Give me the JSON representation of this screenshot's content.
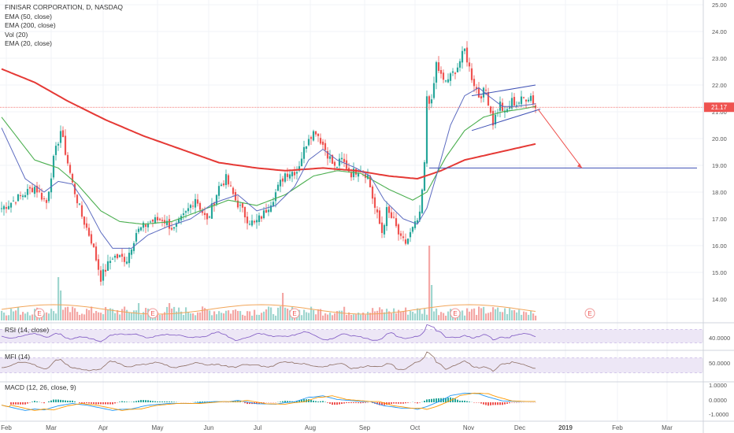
{
  "legend": {
    "title": "FINISAR CORPORATION, D, NASDAQ",
    "ema50": "EMA (50, close)",
    "ema200": "EMA (200, close)",
    "vol": "Vol (20)",
    "ema20": "EMA (20, close)"
  },
  "indicators": {
    "rsi": "RSI (14, close)",
    "mfi": "MFI (14)",
    "macd": "MACD (12, 26, close, 9)"
  },
  "colors": {
    "up": "#26a69a",
    "down": "#ef5350",
    "ema20": "#5c6bc0",
    "ema50": "#4caf50",
    "ema200": "#e53935",
    "osc": "#7e57c2",
    "band": "#ede7f6",
    "price_line": "#ef5350",
    "trend": "#3f51b5"
  },
  "chart_data": {
    "type": "candlestick",
    "ylim": [
      13,
      25
    ],
    "price_ticks": [
      "25.00",
      "24.00",
      "23.00",
      "22.00",
      "21.00",
      "20.00",
      "19.00",
      "18.00",
      "17.00",
      "16.00",
      "15.00",
      "14.00"
    ],
    "last_price": "21.17",
    "x_labels": [
      "Feb",
      "Mar",
      "Apr",
      "May",
      "Jun",
      "Jul",
      "Aug",
      "Sep",
      "Oct",
      "Nov",
      "Dec",
      "2019",
      "Feb",
      "Mar"
    ],
    "earnings_marker": "E",
    "earnings_count": 5,
    "close_anchors": [
      [
        0,
        17.4
      ],
      [
        9,
        17.9
      ],
      [
        14,
        18.2
      ],
      [
        19,
        17.6
      ],
      [
        22,
        19.2
      ],
      [
        25,
        20.3
      ],
      [
        30,
        18.3
      ],
      [
        34,
        17.1
      ],
      [
        38,
        16.2
      ],
      [
        42,
        14.8
      ],
      [
        47,
        15.6
      ],
      [
        53,
        15.5
      ],
      [
        57,
        16.5
      ],
      [
        63,
        16.9
      ],
      [
        68,
        17.0
      ],
      [
        73,
        16.6
      ],
      [
        78,
        17.2
      ],
      [
        82,
        17.8
      ],
      [
        87,
        16.9
      ],
      [
        92,
        18.2
      ],
      [
        95,
        18.5
      ],
      [
        99,
        17.7
      ],
      [
        104,
        17.0
      ],
      [
        107,
        16.8
      ],
      [
        111,
        17.2
      ],
      [
        115,
        17.8
      ],
      [
        120,
        18.7
      ],
      [
        125,
        18.8
      ],
      [
        130,
        20.1
      ],
      [
        133,
        20.3
      ],
      [
        137,
        19.6
      ],
      [
        141,
        18.9
      ],
      [
        144,
        19.2
      ],
      [
        148,
        18.7
      ],
      [
        152,
        18.9
      ],
      [
        155,
        18.6
      ],
      [
        158,
        17.4
      ],
      [
        161,
        16.5
      ],
      [
        163,
        17.3
      ],
      [
        166,
        16.9
      ],
      [
        169,
        16.2
      ],
      [
        171,
        16.1
      ],
      [
        174,
        16.6
      ],
      [
        177,
        17.1
      ],
      [
        179,
        19.0
      ],
      [
        180,
        21.6
      ],
      [
        182,
        21.3
      ],
      [
        184,
        22.8
      ],
      [
        187,
        22.1
      ],
      [
        190,
        22.3
      ],
      [
        193,
        22.7
      ],
      [
        196,
        23.3
      ],
      [
        199,
        22.3
      ],
      [
        202,
        21.6
      ],
      [
        205,
        21.8
      ],
      [
        208,
        20.6
      ],
      [
        211,
        21.3
      ],
      [
        213,
        20.9
      ],
      [
        216,
        21.4
      ],
      [
        218,
        21.3
      ],
      [
        221,
        21.5
      ],
      [
        224,
        21.6
      ],
      [
        226,
        21.17
      ]
    ],
    "ema20": [
      [
        0,
        20.4
      ],
      [
        10,
        18.5
      ],
      [
        18,
        18.0
      ],
      [
        24,
        18.4
      ],
      [
        30,
        18.3
      ],
      [
        36,
        17.5
      ],
      [
        42,
        16.5
      ],
      [
        47,
        15.9
      ],
      [
        55,
        15.9
      ],
      [
        62,
        16.4
      ],
      [
        70,
        16.7
      ],
      [
        80,
        17.0
      ],
      [
        90,
        17.6
      ],
      [
        100,
        17.9
      ],
      [
        108,
        17.3
      ],
      [
        116,
        17.5
      ],
      [
        124,
        18.2
      ],
      [
        130,
        19.2
      ],
      [
        136,
        19.6
      ],
      [
        142,
        19.2
      ],
      [
        150,
        18.9
      ],
      [
        156,
        18.6
      ],
      [
        162,
        17.7
      ],
      [
        170,
        17.0
      ],
      [
        176,
        16.8
      ],
      [
        180,
        17.4
      ],
      [
        184,
        18.6
      ],
      [
        190,
        20.5
      ],
      [
        196,
        21.6
      ],
      [
        202,
        21.9
      ],
      [
        206,
        21.6
      ],
      [
        212,
        21.2
      ],
      [
        218,
        21.2
      ],
      [
        226,
        21.3
      ]
    ],
    "ema50": [
      [
        0,
        20.8
      ],
      [
        14,
        19.2
      ],
      [
        24,
        18.9
      ],
      [
        32,
        18.3
      ],
      [
        42,
        17.3
      ],
      [
        50,
        16.9
      ],
      [
        60,
        16.8
      ],
      [
        72,
        16.9
      ],
      [
        84,
        17.3
      ],
      [
        96,
        17.7
      ],
      [
        108,
        17.5
      ],
      [
        120,
        17.9
      ],
      [
        132,
        18.6
      ],
      [
        142,
        18.8
      ],
      [
        152,
        18.7
      ],
      [
        164,
        18.1
      ],
      [
        174,
        17.7
      ],
      [
        180,
        18.0
      ],
      [
        188,
        19.3
      ],
      [
        196,
        20.3
      ],
      [
        204,
        20.8
      ],
      [
        212,
        21.0
      ],
      [
        220,
        21.1
      ],
      [
        226,
        21.2
      ]
    ],
    "ema200": [
      [
        0,
        22.6
      ],
      [
        14,
        22.1
      ],
      [
        28,
        21.4
      ],
      [
        44,
        20.7
      ],
      [
        60,
        20.1
      ],
      [
        76,
        19.6
      ],
      [
        92,
        19.1
      ],
      [
        108,
        18.9
      ],
      [
        120,
        18.8
      ],
      [
        136,
        18.9
      ],
      [
        150,
        18.8
      ],
      [
        164,
        18.6
      ],
      [
        176,
        18.5
      ],
      [
        186,
        18.8
      ],
      [
        196,
        19.2
      ],
      [
        206,
        19.4
      ],
      [
        216,
        19.6
      ],
      [
        226,
        19.8
      ]
    ],
    "support_level": 18.9,
    "channel": {
      "upper": [
        [
          199,
          21.6
        ],
        [
          226,
          22.0
        ]
      ],
      "lower": [
        [
          199,
          20.3
        ],
        [
          228,
          21.1
        ]
      ]
    },
    "projection": {
      "from": [
        227,
        21.1
      ],
      "to": [
        239,
        18.9
      ]
    },
    "earnings_at": [
      10,
      58,
      118,
      186,
      243
    ],
    "volume_spikes": [
      [
        24,
        0.55
      ],
      [
        25,
        0.38
      ],
      [
        71,
        0.22
      ],
      [
        119,
        0.35
      ],
      [
        181,
        0.95
      ],
      [
        182,
        0.45
      ],
      [
        58,
        0.22
      ],
      [
        40,
        0.12
      ],
      [
        100,
        0.12
      ]
    ],
    "rsi_levels": [
      70,
      40
    ],
    "mfi_levels": [
      80,
      50
    ],
    "macd_ticks": [
      "1.0000",
      "0.0000",
      "-1.0000"
    ]
  }
}
